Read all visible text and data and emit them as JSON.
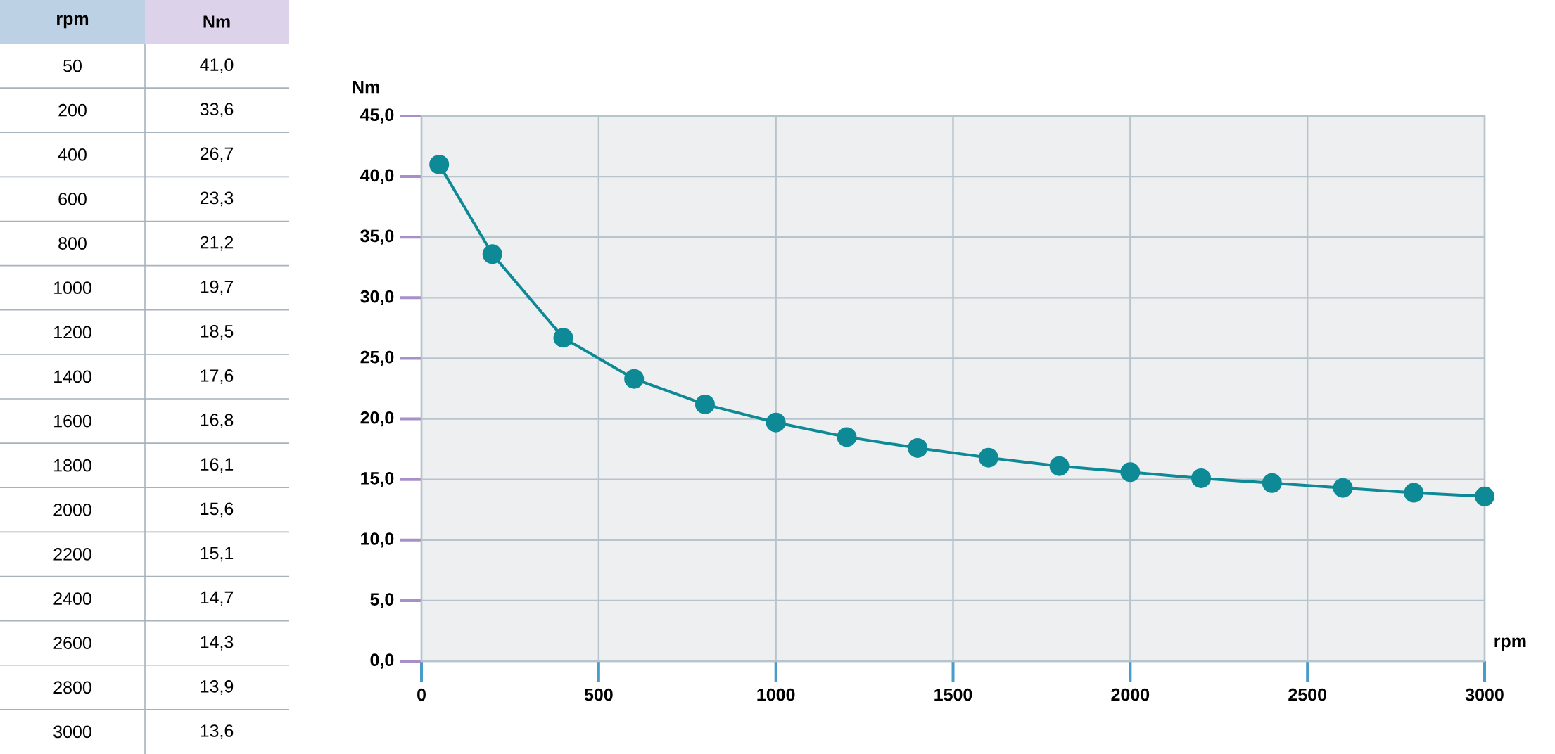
{
  "chart_data": [
    {
      "type": "other",
      "annotations": [
        "rpm",
        "Nm",
        "50",
        "41,0",
        "200",
        "33,6",
        "400",
        "26,7",
        "600",
        "23,3",
        "800",
        "21,2",
        "1000",
        "19,7",
        "1200",
        "18,5",
        "1400",
        "17,6",
        "1600",
        "16,8",
        "1800",
        "16,1",
        "2000",
        "15,6",
        "2200",
        "15,1",
        "2400",
        "14,7",
        "2600",
        "14,3",
        "2800",
        "13,9",
        "3000",
        "13,6"
      ]
    },
    {
      "type": "line",
      "xlabel": "rpm",
      "ylabel": "Nm",
      "x": [
        50,
        200,
        400,
        600,
        800,
        1000,
        1200,
        1400,
        1600,
        1800,
        2000,
        2200,
        2400,
        2600,
        2800,
        3000
      ],
      "series": [
        {
          "color": "#0e8a96",
          "values": [
            41.0,
            33.6,
            26.7,
            23.3,
            21.2,
            19.7,
            18.5,
            17.6,
            16.8,
            16.1,
            15.6,
            15.1,
            14.7,
            14.3,
            13.9,
            13.6
          ]
        }
      ],
      "xlim": [
        0,
        3000
      ],
      "xticks": [
        0,
        500,
        1000,
        1500,
        2000,
        2500,
        3000
      ],
      "ylim": [
        0,
        45
      ],
      "yticks": [
        {
          "value": 0,
          "label": "0,0"
        },
        {
          "value": 5,
          "label": "5,0"
        },
        {
          "value": 10,
          "label": "10,0"
        },
        {
          "value": 15,
          "label": "15,0"
        },
        {
          "value": 20,
          "label": "20,0"
        },
        {
          "value": 25,
          "label": "25,0"
        },
        {
          "value": 30,
          "label": "30,0"
        },
        {
          "value": 35,
          "label": "35,0"
        },
        {
          "value": 40,
          "label": "40,0"
        },
        {
          "value": 45,
          "label": "45,0"
        }
      ],
      "grid": true,
      "marker": "circle",
      "line_style": "solid"
    }
  ]
}
